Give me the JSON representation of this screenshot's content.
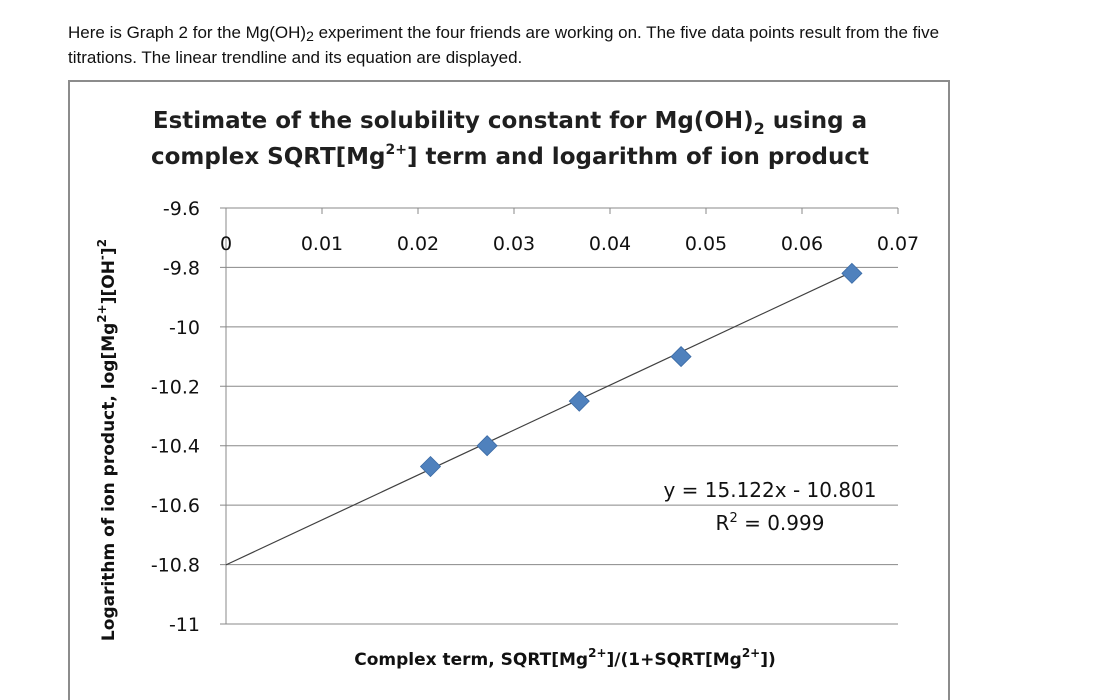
{
  "intro": {
    "line1_a": "Here is Graph 2 for the Mg(OH)",
    "line1_sub": "2",
    "line1_b": " experiment the four friends are working on. The five data points result from the five",
    "line2": "titrations. The linear trendline and its equation are displayed."
  },
  "chart_data": {
    "type": "scatter",
    "title_line1_a": "Estimate of the solubility constant for Mg(OH)",
    "title_line1_sub": "2",
    "title_line1_b": " using a",
    "title_line2_a": "complex SQRT[Mg",
    "title_line2_sup": "2+",
    "title_line2_b": "] term and logarithm of ion product",
    "xlabel_a": "Complex term, SQRT[Mg",
    "xlabel_sup1": "2+",
    "xlabel_b": "]/(1+SQRT[Mg",
    "xlabel_sup2": "2+",
    "xlabel_c": "])",
    "ylabel_a": "Logarithm of ion product, log[Mg",
    "ylabel_sup1": "2+",
    "ylabel_b": "][OH",
    "ylabel_sup2": "-",
    "ylabel_c": "]",
    "ylabel_sup3": "2",
    "xlim": [
      0,
      0.07
    ],
    "ylim": [
      -11,
      -9.6
    ],
    "x_ticks": [
      0,
      0.01,
      0.02,
      0.03,
      0.04,
      0.05,
      0.06,
      0.07
    ],
    "x_tick_labels": [
      "0",
      "0.01",
      "0.02",
      "0.03",
      "0.04",
      "0.05",
      "0.06",
      "0.07"
    ],
    "y_ticks": [
      -9.6,
      -9.8,
      -10,
      -10.2,
      -10.4,
      -10.6,
      -10.8,
      -11
    ],
    "y_tick_labels": [
      "-9.6",
      "-9.8",
      "-10",
      "-10.2",
      "-10.4",
      "-10.6",
      "-10.8",
      "-11"
    ],
    "x_axis_position": "top",
    "grid": "horizontal",
    "points": [
      {
        "x": 0.0213,
        "y": -10.47
      },
      {
        "x": 0.0272,
        "y": -10.4
      },
      {
        "x": 0.0368,
        "y": -10.25
      },
      {
        "x": 0.0474,
        "y": -10.1
      },
      {
        "x": 0.0652,
        "y": -9.82
      }
    ],
    "trendline": {
      "slope": 15.122,
      "intercept": -10.801
    },
    "equation_text": "y = 15.122x - 10.801",
    "r2_a": "R",
    "r2_sup": "2",
    "r2_b": " = 0.999",
    "colors": {
      "marker": "#4f81bd",
      "trendline": "#404040",
      "grid": "#888888"
    }
  }
}
